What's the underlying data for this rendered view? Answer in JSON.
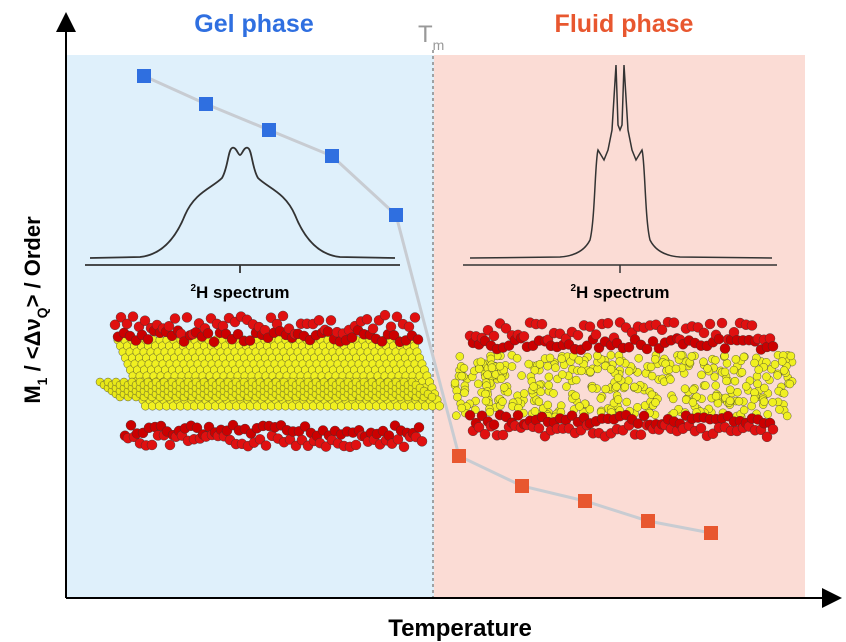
{
  "header": {
    "gel_phase": "Gel phase",
    "fluid_phase": "Fluid phase"
  },
  "transition": {
    "symbol": "T",
    "subscript": "m"
  },
  "axes": {
    "x_label": "Temperature",
    "y_label": {
      "part1": "M",
      "sub1": "1",
      "part2": " / <Δν",
      "sub2": "Q",
      "part3": "> / Order"
    }
  },
  "spectra": [
    {
      "superscript": "2",
      "label": "H spectrum"
    },
    {
      "superscript": "2",
      "label": "H spectrum"
    }
  ]
}
